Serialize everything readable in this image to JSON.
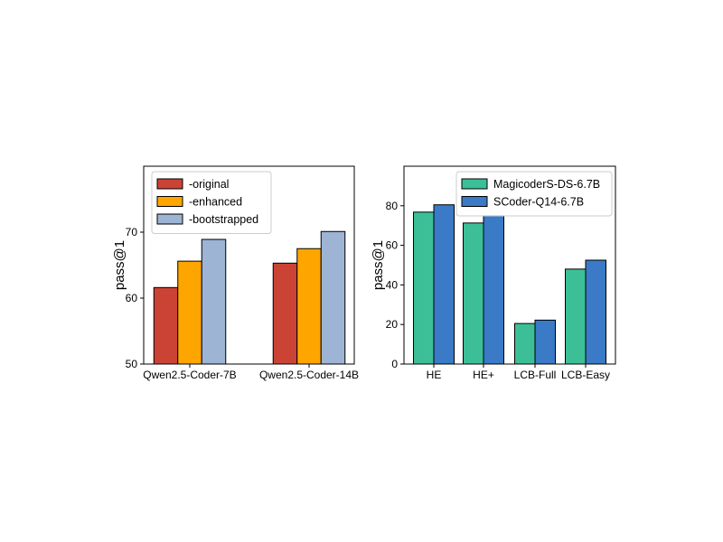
{
  "chart_data": [
    {
      "type": "bar",
      "categories": [
        "Qwen2.5-Coder-7B",
        "Qwen2.5-Coder-14B"
      ],
      "series": [
        {
          "name": "-original",
          "values": [
            61.6,
            65.3
          ]
        },
        {
          "name": "-enhanced",
          "values": [
            65.6,
            67.5
          ]
        },
        {
          "name": "-bootstrapped",
          "values": [
            68.9,
            70.1
          ]
        }
      ],
      "colors": [
        "#cb4335",
        "#ffa500",
        "#9db4d4"
      ],
      "xlabel": "",
      "ylabel": "pass@1",
      "ylim": [
        50,
        80
      ],
      "yticks": [
        50,
        60,
        70
      ],
      "legend_position": "upper-left",
      "grid": false
    },
    {
      "type": "bar",
      "categories": [
        "HE",
        "HE+",
        "LCB-Full",
        "LCB-Easy"
      ],
      "series": [
        {
          "name": "MagicoderS-DS-6.7B",
          "values": [
            76.8,
            71.3,
            20.5,
            48.0
          ]
        },
        {
          "name": "SCoder-Q14-6.7B",
          "values": [
            80.5,
            75.0,
            22.2,
            52.5
          ]
        }
      ],
      "colors": [
        "#3cbf96",
        "#3a7ac6"
      ],
      "xlabel": "",
      "ylabel": "pass@1",
      "ylim": [
        0,
        100
      ],
      "yticks": [
        0,
        20,
        40,
        60,
        80
      ],
      "legend_position": "upper-right",
      "grid": false
    }
  ]
}
